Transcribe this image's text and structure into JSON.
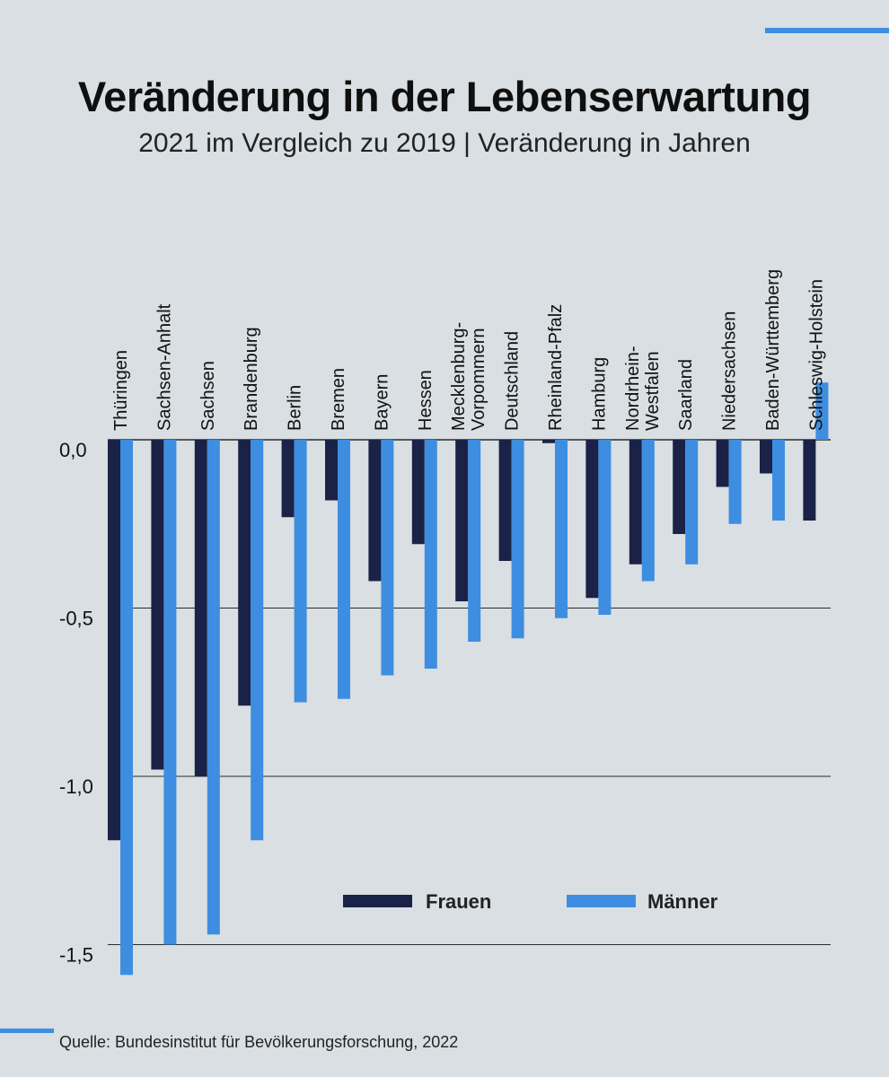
{
  "title": "Veränderung in der Lebenserwartung",
  "subtitle": "2021 im Vergleich zu 2019 | Veränderung in Jahren",
  "source": "Quelle: Bundesinstitut für Bevölkerungsforschung, 2022",
  "colors": {
    "frauen": "#1b2247",
    "maenner": "#3d8ee0",
    "background": "#d9dfe2",
    "accent": "#3d8ee0"
  },
  "chart_data": {
    "type": "bar",
    "title": "Veränderung in der Lebenserwartung",
    "subtitle": "2021 im Vergleich zu 2019 | Veränderung in Jahren",
    "categories": [
      "Thüringen",
      "Sachsen-Anhalt",
      "Sachsen",
      "Brandenburg",
      "Berlin",
      "Bremen",
      "Bayern",
      "Hessen",
      "Mecklenburg-\nVorpommern",
      "Deutschland",
      "Rheinland-Pfalz",
      "Hamburg",
      "Nordrhein-\nWestfalen",
      "Saarland",
      "Niedersachsen",
      "Baden-Württemberg",
      "Schleswig-Holstein"
    ],
    "series": [
      {
        "name": "Frauen",
        "values": [
          -1.19,
          -0.98,
          -1.0,
          -0.79,
          -0.23,
          -0.18,
          -0.42,
          -0.31,
          -0.48,
          -0.36,
          -0.01,
          -0.47,
          -0.37,
          -0.28,
          -0.14,
          -0.1,
          -0.24
        ]
      },
      {
        "name": "Männer",
        "values": [
          -1.59,
          -1.5,
          -1.47,
          -1.19,
          -0.78,
          -0.77,
          -0.7,
          -0.68,
          -0.6,
          -0.59,
          -0.53,
          -0.52,
          -0.42,
          -0.37,
          -0.25,
          -0.24,
          0.17
        ]
      }
    ],
    "yticks": [
      0.0,
      -0.5,
      -1.0,
      -1.5
    ],
    "ytick_labels": [
      "0,0",
      "-0,5",
      "-1,0",
      "-1,5"
    ],
    "ylim": [
      -1.62,
      0.2
    ],
    "grid": true,
    "legend": "bottom-right",
    "xlabel": "",
    "ylabel": ""
  }
}
